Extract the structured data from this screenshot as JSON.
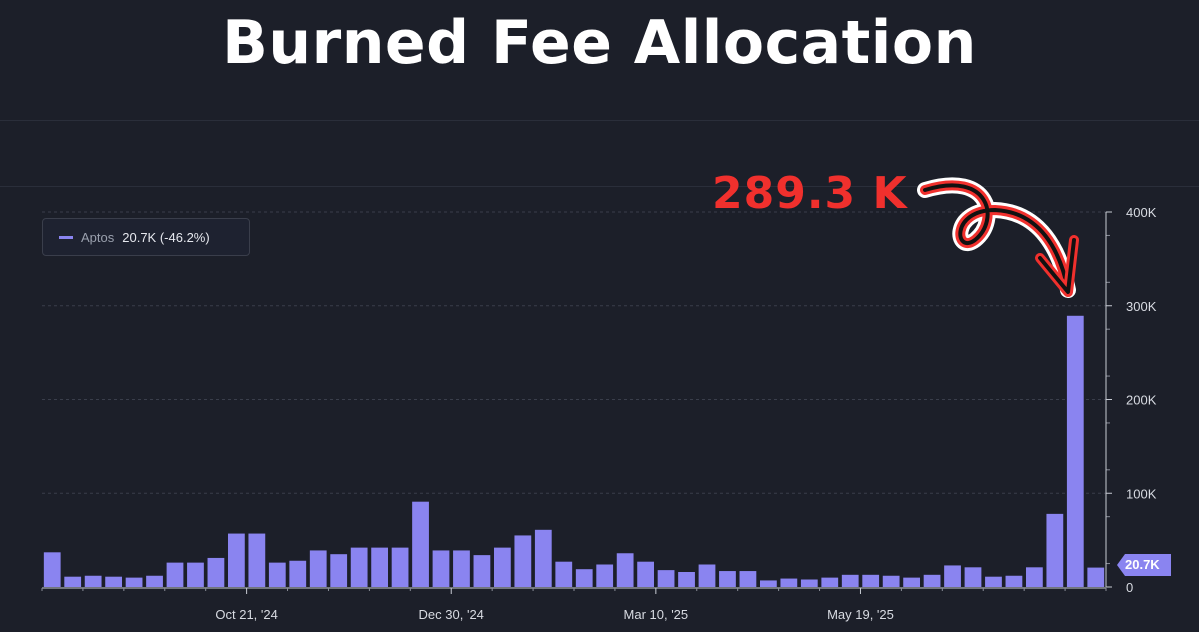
{
  "title": "Burned Fee Allocation",
  "legend": {
    "name": "Aptos",
    "value": "20.7K (-46.2%)"
  },
  "annotation": "289.3 K",
  "last_value_label": "20.7K",
  "colors": {
    "bar": "#8a84f0",
    "annotation": "#f0302d",
    "background": "#1c1f29"
  },
  "chart_data": {
    "type": "bar",
    "title": "Burned Fee Allocation",
    "series": [
      {
        "name": "Aptos",
        "values": [
          37000,
          11000,
          12000,
          11000,
          10000,
          12000,
          26000,
          26000,
          31000,
          57000,
          57000,
          26000,
          28000,
          39000,
          35000,
          42000,
          42000,
          42000,
          91000,
          39000,
          39000,
          34000,
          42000,
          55000,
          61000,
          27000,
          19000,
          24000,
          36000,
          27000,
          18000,
          16000,
          24000,
          17000,
          17000,
          7000,
          9000,
          8000,
          10000,
          13000,
          13000,
          12000,
          10000,
          13000,
          23000,
          21000,
          11000,
          12000,
          21000,
          78000,
          289300,
          20700
        ]
      }
    ],
    "x_tick_labels": [
      "Oct 21, '24",
      "Dec 30, '24",
      "Mar 10, '25",
      "May 19, '25"
    ],
    "y_tick_labels": [
      "0",
      "100K",
      "200K",
      "300K",
      "400K"
    ],
    "ylim": [
      0,
      400000
    ],
    "grid": true,
    "legend_position": "top-left"
  }
}
